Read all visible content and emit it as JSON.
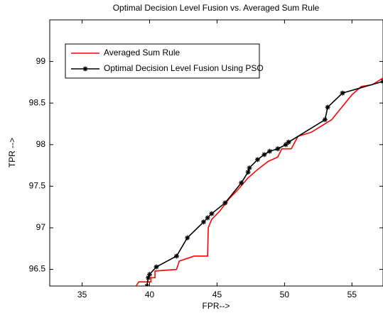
{
  "chart_data": {
    "type": "line",
    "title": "Optimal Decision Level Fusion vs. Averaged Sum Rule",
    "x_label": "FPR-->",
    "y_label": "TPR -->",
    "xlim": [
      32.6,
      57.3
    ],
    "ylim": [
      96.3,
      99.5
    ],
    "xticks": [
      35,
      40,
      45,
      50,
      55
    ],
    "yticks": [
      96.5,
      97,
      97.5,
      98,
      98.5,
      99
    ],
    "legend": "upper left",
    "grid": false,
    "series": [
      {
        "name": "Averaged Sum Rule",
        "color": "#ff0000",
        "x": [
          39,
          39.2,
          40.1,
          40.1,
          40.4,
          40.4,
          42,
          42.2,
          43.3,
          44.3,
          44.35,
          44.6,
          45.2,
          45.9,
          46.5,
          47.3,
          48,
          48.8,
          49.5,
          49.8,
          50.5,
          51,
          52,
          53,
          53.5,
          54,
          55,
          55.7,
          56.5,
          57.3
        ],
        "values": [
          96.3,
          96.35,
          96.35,
          96.4,
          96.4,
          96.48,
          96.5,
          96.6,
          96.66,
          96.66,
          97.0,
          97.1,
          97.2,
          97.35,
          97.45,
          97.6,
          97.7,
          97.8,
          97.85,
          97.95,
          97.95,
          98.1,
          98.15,
          98.25,
          98.3,
          98.4,
          98.6,
          98.7,
          98.72,
          98.8
        ]
      },
      {
        "name": "Optimal Decision Level Fusion Using PSO",
        "color": "#000000",
        "marker": "+",
        "x": [
          39.8,
          39.9,
          40,
          40.5,
          42,
          42.8,
          44,
          44.3,
          44.6,
          45.6,
          46.8,
          47.3,
          47.4,
          48,
          48.5,
          48.9,
          49.5,
          50.1,
          50.3,
          53,
          53.2,
          54.3,
          57.3
        ],
        "values": [
          96.3,
          96.4,
          96.44,
          96.53,
          96.66,
          96.88,
          97.07,
          97.12,
          97.17,
          97.3,
          97.54,
          97.67,
          97.72,
          97.82,
          97.88,
          97.92,
          97.95,
          98.0,
          98.03,
          98.3,
          98.45,
          98.62,
          98.76
        ]
      }
    ]
  }
}
